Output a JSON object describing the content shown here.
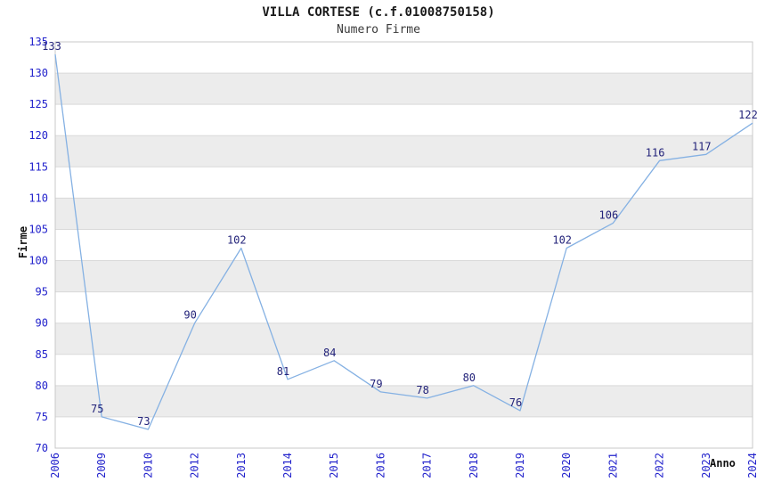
{
  "chart_data": {
    "type": "line",
    "title": "VILLA CORTESE (c.f.01008750158)",
    "subtitle": "Numero Firme",
    "xlabel": "Anno",
    "ylabel": "Firme",
    "categories": [
      "2006",
      "2009",
      "2010",
      "2012",
      "2013",
      "2014",
      "2015",
      "2016",
      "2017",
      "2018",
      "2019",
      "2020",
      "2021",
      "2022",
      "2023",
      "2024"
    ],
    "values": [
      133,
      75,
      73,
      90,
      102,
      81,
      84,
      79,
      78,
      80,
      76,
      102,
      106,
      116,
      117,
      122
    ],
    "ylim": [
      70,
      135
    ],
    "ytick_step": 5,
    "grid": "horizontal-gridlines-with-alternating-bands",
    "legend": "none",
    "data_labels_shown": true,
    "colors": {
      "line": "#85b1e3",
      "tick_label": "#2323cc",
      "data_label": "#23237a",
      "band": "#ececec",
      "gridline": "#d9d9d9",
      "border": "#c8c8c8",
      "title": "#1a1a1a",
      "subtitle": "#3a3a3a",
      "axis_title": "#111111",
      "background": "#ffffff"
    }
  }
}
